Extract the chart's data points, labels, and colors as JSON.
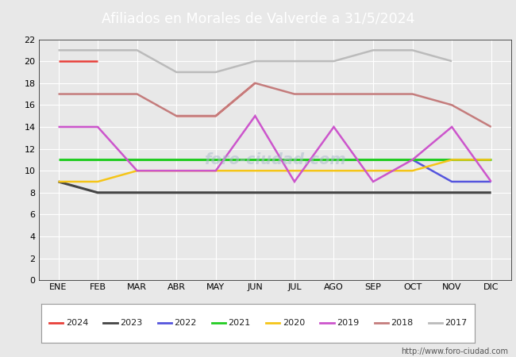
{
  "title": "Afiliados en Morales de Valverde a 31/5/2024",
  "title_bg_color": "#5b8dd9",
  "title_text_color": "white",
  "months": [
    "ENE",
    "FEB",
    "MAR",
    "ABR",
    "MAY",
    "JUN",
    "JUL",
    "AGO",
    "SEP",
    "OCT",
    "NOV",
    "DIC"
  ],
  "ylim": [
    0,
    22
  ],
  "yticks": [
    0,
    2,
    4,
    6,
    8,
    10,
    12,
    14,
    16,
    18,
    20,
    22
  ],
  "watermark": "foro-ciudad.com",
  "url": "http://www.foro-ciudad.com",
  "series": {
    "2024": {
      "color": "#e8403a",
      "linewidth": 1.8,
      "data": [
        20,
        20,
        null,
        15,
        15,
        18,
        null,
        null,
        null,
        null,
        null,
        null
      ]
    },
    "2023": {
      "color": "#444444",
      "linewidth": 2.2,
      "data": [
        9,
        8,
        8,
        8,
        8,
        8,
        8,
        8,
        8,
        8,
        8,
        8
      ]
    },
    "2022": {
      "color": "#5555dd",
      "linewidth": 1.8,
      "data": [
        null,
        null,
        null,
        null,
        null,
        null,
        null,
        null,
        11,
        11,
        9,
        9
      ]
    },
    "2021": {
      "color": "#22cc22",
      "linewidth": 2.2,
      "data": [
        11,
        11,
        11,
        11,
        11,
        11,
        11,
        11,
        11,
        11,
        11,
        11
      ]
    },
    "2020": {
      "color": "#f5c518",
      "linewidth": 1.8,
      "data": [
        9,
        9,
        10,
        10,
        10,
        10,
        10,
        10,
        10,
        10,
        11,
        11
      ]
    },
    "2019": {
      "color": "#cc55cc",
      "linewidth": 1.8,
      "data": [
        14,
        14,
        10,
        10,
        10,
        15,
        9,
        14,
        9,
        11,
        14,
        9
      ]
    },
    "2018": {
      "color": "#c47c7c",
      "linewidth": 1.8,
      "data": [
        17,
        17,
        17,
        15,
        15,
        18,
        17,
        17,
        17,
        17,
        16,
        14
      ]
    },
    "2017": {
      "color": "#bbbbbb",
      "linewidth": 1.8,
      "data": [
        21,
        21,
        21,
        19,
        19,
        20,
        20,
        20,
        21,
        21,
        20,
        null
      ]
    }
  },
  "fig_bg_color": "#e8e8e8",
  "plot_bg_color": "#e8e8e8",
  "grid_color": "white",
  "legend_order": [
    "2024",
    "2023",
    "2022",
    "2021",
    "2020",
    "2019",
    "2018",
    "2017"
  ]
}
